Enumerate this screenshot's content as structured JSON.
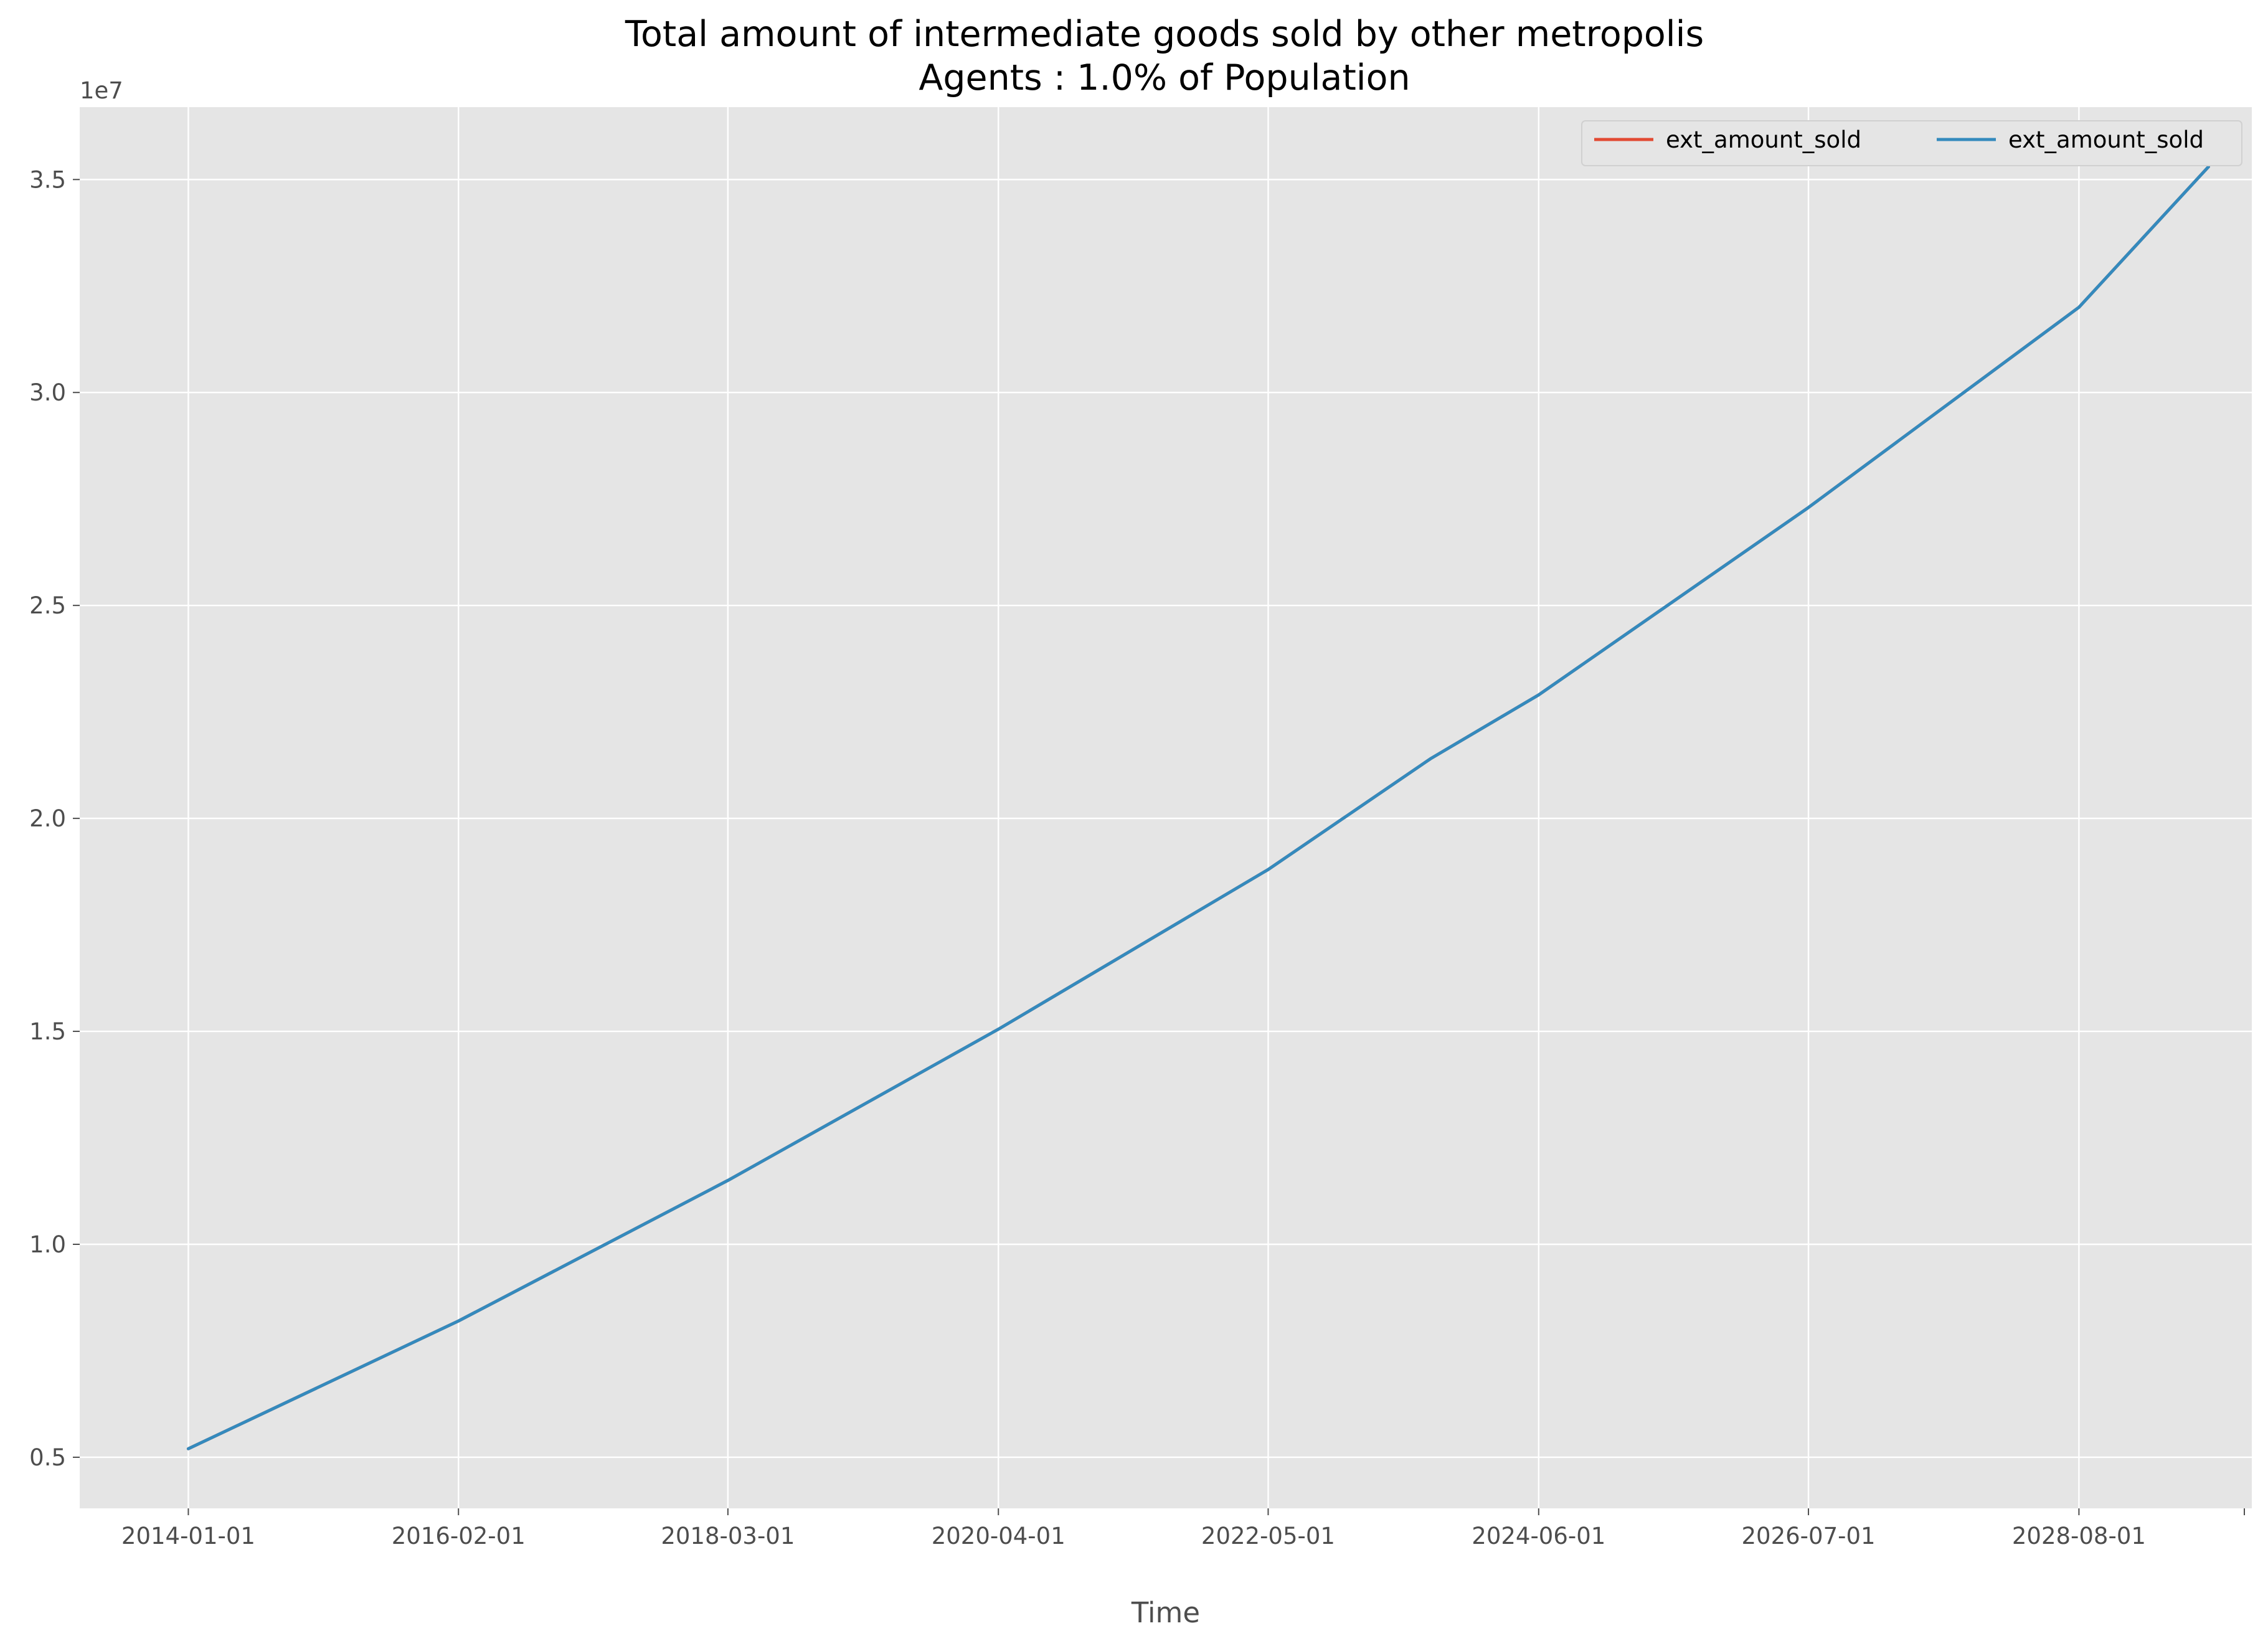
{
  "chart_data": {
    "type": "line",
    "title": "Total amount of intermediate goods sold by other metropolis",
    "subtitle": "Agents : 1.0% of Population",
    "xlabel": "Time",
    "ylabel": "",
    "y_offset_label": "1e7",
    "x_scale": "date",
    "xlim": [
      "2013-03-01",
      "2029-12-01"
    ],
    "ylim": [
      3800000,
      36700000
    ],
    "grid": true,
    "background_color": "#e5e5e5",
    "legend_position": "top-right",
    "legend_columns": 2,
    "x_ticks": [
      "2014-01-01",
      "2016-02-01",
      "2018-03-01",
      "2020-04-01",
      "2022-05-01",
      "2024-06-01",
      "2026-07-01",
      "2028-08-01"
    ],
    "y_ticks": [
      {
        "value": 5000000,
        "label": "0.5"
      },
      {
        "value": 10000000,
        "label": "1.0"
      },
      {
        "value": 15000000,
        "label": "1.5"
      },
      {
        "value": 20000000,
        "label": "2.0"
      },
      {
        "value": 25000000,
        "label": "2.5"
      },
      {
        "value": 30000000,
        "label": "3.0"
      },
      {
        "value": 35000000,
        "label": "3.5"
      }
    ],
    "x": [
      "2014-01-01",
      "2016-02-01",
      "2018-03-01",
      "2020-04-01",
      "2022-05-01",
      "2023-08-01",
      "2024-06-01",
      "2026-07-01",
      "2028-08-01",
      "2029-08-01"
    ],
    "series": [
      {
        "name": "ext_amount_sold",
        "color": "#e24a33",
        "values": [
          5200000,
          8200000,
          11500000,
          15050000,
          18800000,
          21400000,
          22900000,
          27300000,
          32000000,
          35300000
        ]
      },
      {
        "name": "ext_amount_sold",
        "color": "#348abd",
        "values": [
          5200000,
          8200000,
          11500000,
          15050000,
          18800000,
          21400000,
          22900000,
          27300000,
          32000000,
          35300000
        ]
      }
    ]
  }
}
